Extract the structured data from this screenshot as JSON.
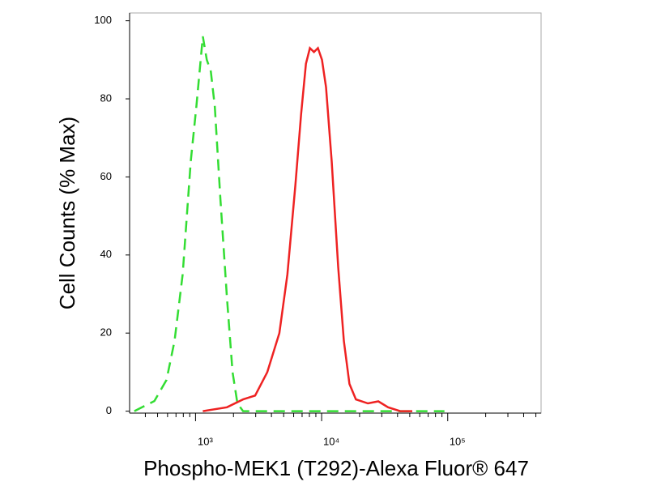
{
  "chart_data": {
    "type": "line",
    "xlabel": "Phospho-MEK1 (T292)-Alexa Fluor® 647",
    "ylabel": "Cell Counts (% Max)",
    "xscale": "log",
    "xlim": [
      300,
      550000
    ],
    "ylim": [
      -0.5,
      102
    ],
    "xticks": [
      {
        "value": 1000,
        "label": "10³"
      },
      {
        "value": 10000,
        "label": "10⁴"
      },
      {
        "value": 100000,
        "label": "10⁵"
      }
    ],
    "minor_xticks": [
      400,
      500,
      600,
      700,
      800,
      900,
      2000,
      3000,
      4000,
      5000,
      6000,
      7000,
      8000,
      9000,
      20000,
      30000,
      40000,
      50000,
      60000,
      70000,
      80000,
      90000,
      200000,
      300000,
      400000,
      500000
    ],
    "yticks": [
      0,
      20,
      40,
      60,
      80,
      100
    ],
    "series": [
      {
        "color": "#33dd33",
        "dash": true,
        "x": [
          327,
          472,
          589,
          682,
          791,
          916,
          1015,
          1092,
          1142,
          1228,
          1322,
          1423,
          1577,
          1774,
          1966,
          2149,
          2382,
          10370,
          94200
        ],
        "values": [
          0,
          2.6,
          8,
          18,
          35,
          64,
          78,
          89,
          96,
          90,
          87,
          78,
          54,
          29,
          10,
          2,
          0,
          0,
          0
        ]
      },
      {
        "color": "#ee2222",
        "dash": false,
        "x": [
          1142,
          1774,
          2382,
          2972,
          3707,
          4625,
          5351,
          6194,
          6870,
          7505,
          8075,
          8690,
          9350,
          10070,
          10840,
          12020,
          13520,
          15000,
          16610,
          18690,
          23290,
          28190,
          33650,
          41980,
          52390
        ],
        "values": [
          0,
          1,
          3,
          4,
          10,
          20,
          35,
          58,
          76,
          89,
          93,
          92,
          93,
          90,
          83,
          64,
          37,
          18,
          7,
          3,
          2,
          2.5,
          1,
          0,
          0
        ]
      }
    ]
  }
}
